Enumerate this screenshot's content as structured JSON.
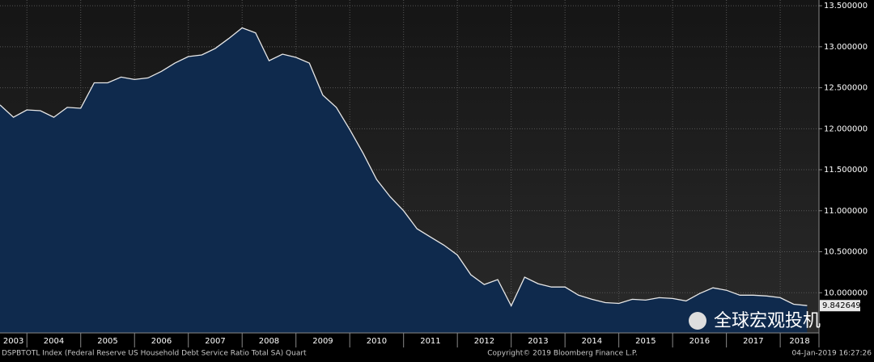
{
  "chart_data": {
    "type": "area",
    "footer_left": "DSPBTOTL Index (Federal Reserve US Household Debt Service Ratio Total SA)  Quart",
    "footer_center": "Copyright© 2019 Bloomberg Finance L.P.",
    "footer_right": "04-Jan-2019 16:27:26",
    "watermark": "全球宏观投机",
    "line_color": "#e8e8e8",
    "fill_color": "#0f2a4d",
    "grid": true,
    "x": [
      2003.5,
      2003.75,
      2004,
      2004.25,
      2004.5,
      2004.75,
      2005,
      2005.25,
      2005.5,
      2005.75,
      2006,
      2006.25,
      2006.5,
      2006.75,
      2007,
      2007.25,
      2007.5,
      2007.75,
      2008,
      2008.25,
      2008.5,
      2008.75,
      2009,
      2009.25,
      2009.5,
      2009.75,
      2010,
      2010.25,
      2010.5,
      2010.75,
      2011,
      2011.25,
      2011.5,
      2011.75,
      2012,
      2012.25,
      2012.5,
      2012.75,
      2013,
      2013.25,
      2013.5,
      2013.75,
      2014,
      2014.25,
      2014.5,
      2014.75,
      2015,
      2015.25,
      2015.5,
      2015.75,
      2016,
      2016.25,
      2016.5,
      2016.75,
      2017,
      2017.25,
      2017.5,
      2017.75,
      2018,
      2018.25,
      2018.5
    ],
    "values": [
      12.29,
      12.14,
      12.23,
      12.22,
      12.14,
      12.26,
      12.25,
      12.56,
      12.56,
      12.63,
      12.6,
      12.62,
      12.7,
      12.8,
      12.88,
      12.9,
      12.98,
      13.1,
      13.23,
      13.17,
      12.83,
      12.91,
      12.87,
      12.8,
      12.41,
      12.26,
      11.99,
      11.7,
      11.38,
      11.17,
      11.0,
      10.78,
      10.68,
      10.58,
      10.46,
      10.22,
      10.1,
      10.16,
      9.84,
      10.19,
      10.11,
      10.07,
      10.07,
      9.97,
      9.92,
      9.88,
      9.87,
      9.92,
      9.91,
      9.94,
      9.93,
      9.9,
      9.99,
      10.06,
      10.03,
      9.97,
      9.97,
      9.96,
      9.94,
      9.86,
      9.842649
    ],
    "xlim": [
      2003.5,
      2018.72
    ],
    "xticks": [
      2003,
      2004,
      2005,
      2006,
      2007,
      2008,
      2009,
      2010,
      2011,
      2012,
      2013,
      2014,
      2015,
      2016,
      2017,
      2018
    ],
    "ylim": [
      9.51,
      13.57
    ],
    "yticks": [
      {
        "value": 10,
        "label": "10.000000"
      },
      {
        "value": 10.5,
        "label": "10.500000"
      },
      {
        "value": 11,
        "label": "11.000000"
      },
      {
        "value": 11.5,
        "label": "11.500000"
      },
      {
        "value": 12,
        "label": "12.000000"
      },
      {
        "value": 12.5,
        "label": "12.500000"
      },
      {
        "value": 13,
        "label": "13.000000"
      },
      {
        "value": 13.5,
        "label": "13.500000"
      }
    ]
  }
}
